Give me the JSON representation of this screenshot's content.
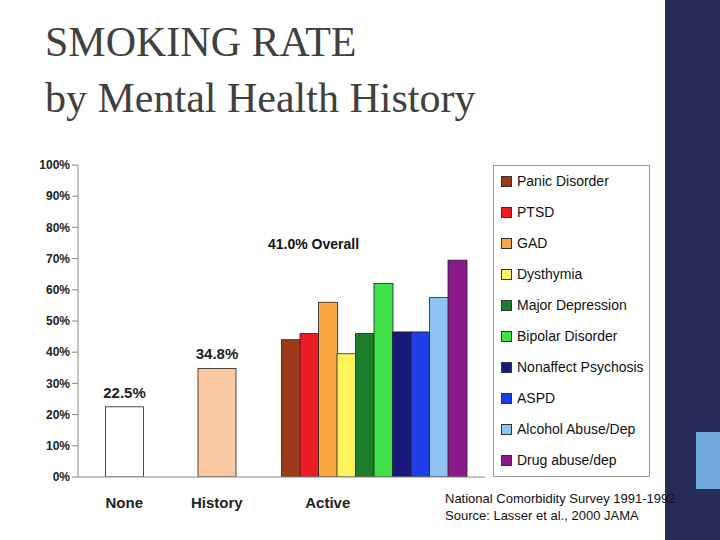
{
  "chart_data": {
    "type": "bar",
    "title": "SMOKING RATE\nby Mental Health History",
    "annotations": [
      "41.0% Overall",
      "National Comorbidity Survey 1991-1992",
      "Source: Lasser et al., 2000 JAMA"
    ],
    "categories": [
      null,
      null,
      "None",
      null,
      null,
      null,
      null,
      "History",
      null,
      null,
      null,
      null,
      null,
      "Active",
      null,
      null,
      null,
      null,
      null,
      null,
      null,
      null
    ],
    "ylim": [
      0,
      100
    ],
    "yticks": [
      {
        "value": 0,
        "label": "0%"
      },
      {
        "value": 10,
        "label": "10%"
      },
      {
        "value": 20,
        "label": "20%"
      },
      {
        "value": 30,
        "label": "30%"
      },
      {
        "value": 40,
        "label": "40%"
      },
      {
        "value": 50,
        "label": "50%"
      },
      {
        "value": 60,
        "label": "60%"
      },
      {
        "value": 70,
        "label": "70%"
      },
      {
        "value": 80,
        "label": "80%"
      },
      {
        "value": 90,
        "label": "90%"
      },
      {
        "value": 100,
        "label": "100%"
      }
    ],
    "grid": false,
    "stacked": true,
    "legend": "right",
    "series": [
      {
        "color": "#ffffff",
        "data_labels": true,
        "values": [
          null,
          null,
          22.5,
          null,
          null,
          null,
          null,
          null,
          null,
          null,
          null,
          null,
          null,
          null,
          null,
          null,
          null,
          null,
          null,
          null,
          null,
          null
        ],
        "value_labels": [
          null,
          null,
          "22.5%",
          null,
          null,
          null,
          null,
          null,
          null,
          null,
          null,
          null,
          null,
          null,
          null,
          null,
          null,
          null,
          null,
          null,
          null,
          null
        ]
      },
      {
        "color": "#fbc8a4",
        "data_labels": true,
        "values": [
          null,
          null,
          null,
          null,
          null,
          null,
          null,
          34.8,
          null,
          null,
          null,
          null,
          null,
          null,
          null,
          null,
          null,
          null,
          null,
          null,
          null,
          null
        ],
        "value_labels": [
          null,
          null,
          null,
          null,
          null,
          null,
          null,
          "34.8%",
          null,
          null,
          null,
          null,
          null,
          null,
          null,
          null,
          null,
          null,
          null,
          null,
          null,
          null
        ]
      },
      {
        "name": "Panic Disorder",
        "color": "#9b3b1b",
        "values": [
          null,
          null,
          null,
          null,
          null,
          null,
          null,
          null,
          null,
          null,
          null,
          44,
          null,
          null,
          null,
          null,
          null,
          null,
          null,
          null,
          null,
          null
        ]
      },
      {
        "name": "PTSD",
        "color": "#ed1c24",
        "values": [
          null,
          null,
          null,
          null,
          null,
          null,
          null,
          null,
          null,
          null,
          null,
          null,
          46,
          null,
          null,
          null,
          null,
          null,
          null,
          null,
          null,
          null
        ]
      },
      {
        "name": "GAD",
        "color": "#f9a73e",
        "values": [
          null,
          null,
          null,
          null,
          null,
          null,
          null,
          null,
          null,
          null,
          null,
          null,
          null,
          56,
          null,
          null,
          null,
          null,
          null,
          null,
          null,
          null
        ]
      },
      {
        "name": "Dysthymia",
        "color": "#fff45c",
        "values": [
          null,
          null,
          null,
          null,
          null,
          null,
          null,
          null,
          null,
          null,
          null,
          null,
          null,
          null,
          39.5,
          null,
          null,
          null,
          null,
          null,
          null,
          null
        ]
      },
      {
        "name": "Major Depression",
        "color": "#1e7d2c",
        "values": [
          null,
          null,
          null,
          null,
          null,
          null,
          null,
          null,
          null,
          null,
          null,
          null,
          null,
          null,
          null,
          46,
          null,
          null,
          null,
          null,
          null,
          null
        ]
      },
      {
        "name": "Bipolar Disorder",
        "color": "#3fe04a",
        "values": [
          null,
          null,
          null,
          null,
          null,
          null,
          null,
          null,
          null,
          null,
          null,
          null,
          null,
          null,
          null,
          null,
          62,
          null,
          null,
          null,
          null,
          null
        ]
      },
      {
        "name": "Nonaffect Psychosis",
        "color": "#171a7a",
        "values": [
          null,
          null,
          null,
          null,
          null,
          null,
          null,
          null,
          null,
          null,
          null,
          null,
          null,
          null,
          null,
          null,
          null,
          46.5,
          null,
          null,
          null,
          null
        ]
      },
      {
        "name": "ASPD",
        "color": "#1f3ee8",
        "values": [
          null,
          null,
          null,
          null,
          null,
          null,
          null,
          null,
          null,
          null,
          null,
          null,
          null,
          null,
          null,
          null,
          null,
          null,
          46.5,
          null,
          null,
          null
        ]
      },
      {
        "name": "Alcohol Abuse/Dep",
        "color": "#8fc3f2",
        "values": [
          null,
          null,
          null,
          null,
          null,
          null,
          null,
          null,
          null,
          null,
          null,
          null,
          null,
          null,
          null,
          null,
          null,
          null,
          null,
          57.5,
          null,
          null
        ]
      },
      {
        "name": "Drug abuse/dep",
        "color": "#8a1a8c",
        "values": [
          null,
          null,
          null,
          null,
          null,
          null,
          null,
          null,
          null,
          null,
          null,
          null,
          null,
          null,
          null,
          null,
          null,
          null,
          null,
          null,
          69.5,
          null
        ]
      }
    ]
  }
}
